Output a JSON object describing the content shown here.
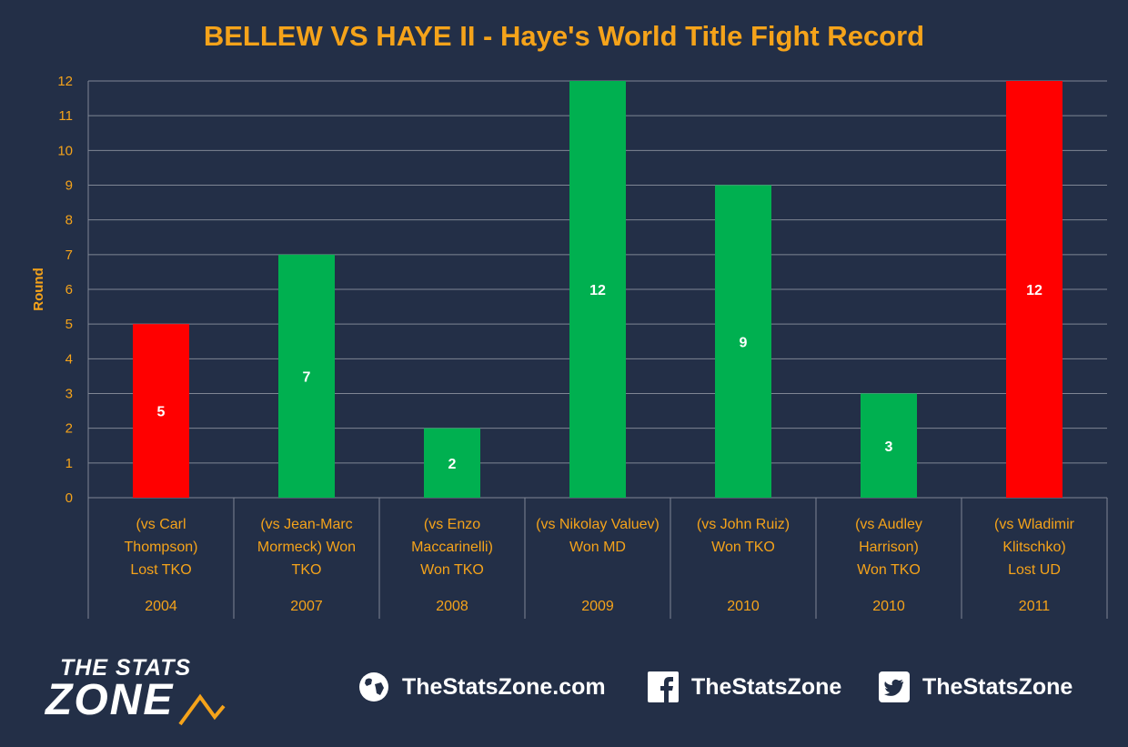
{
  "chart_data": {
    "type": "bar",
    "title": "BELLEW VS HAYE II - Haye's World Title Fight Record",
    "ylabel": "Round",
    "xlabel": "",
    "ylim": [
      0,
      12
    ],
    "yticks": [
      0,
      1,
      2,
      3,
      4,
      5,
      6,
      7,
      8,
      9,
      10,
      11,
      12
    ],
    "grid": true,
    "legend": "none",
    "categories": [
      {
        "label": [
          "(vs Carl",
          "Thompson)",
          "Lost TKO"
        ],
        "year": "2004"
      },
      {
        "label": [
          "(vs Jean-Marc",
          "Mormeck) Won",
          "TKO"
        ],
        "year": "2007"
      },
      {
        "label": [
          "(vs Enzo",
          "Maccarinelli)",
          "Won TKO"
        ],
        "year": "2008"
      },
      {
        "label": [
          "(vs Nikolay Valuev)",
          "Won MD"
        ],
        "year": "2009"
      },
      {
        "label": [
          "(vs John Ruiz)",
          "Won TKO"
        ],
        "year": "2010"
      },
      {
        "label": [
          "(vs Audley",
          "Harrison)",
          "Won TKO"
        ],
        "year": "2010"
      },
      {
        "label": [
          "(vs Wladimir",
          "Klitschko)",
          "Lost UD"
        ],
        "year": "2011"
      }
    ],
    "values": [
      5,
      7,
      2,
      12,
      9,
      3,
      12
    ],
    "data_labels": [
      "5",
      "7",
      "2",
      "12",
      "9",
      "3",
      "12"
    ],
    "outcomes": [
      "loss",
      "win",
      "win",
      "win",
      "win",
      "win",
      "loss"
    ],
    "colors": {
      "win": "#00b050",
      "loss": "#ff0000",
      "text": "#f5a31a",
      "grid": "#7f8694",
      "background": "#232f47"
    }
  },
  "footer": {
    "logo_top": "THE STATS",
    "logo_bottom": "ZONE",
    "website": "TheStatsZone.com",
    "facebook": "TheStatsZone",
    "twitter": "TheStatsZone"
  }
}
